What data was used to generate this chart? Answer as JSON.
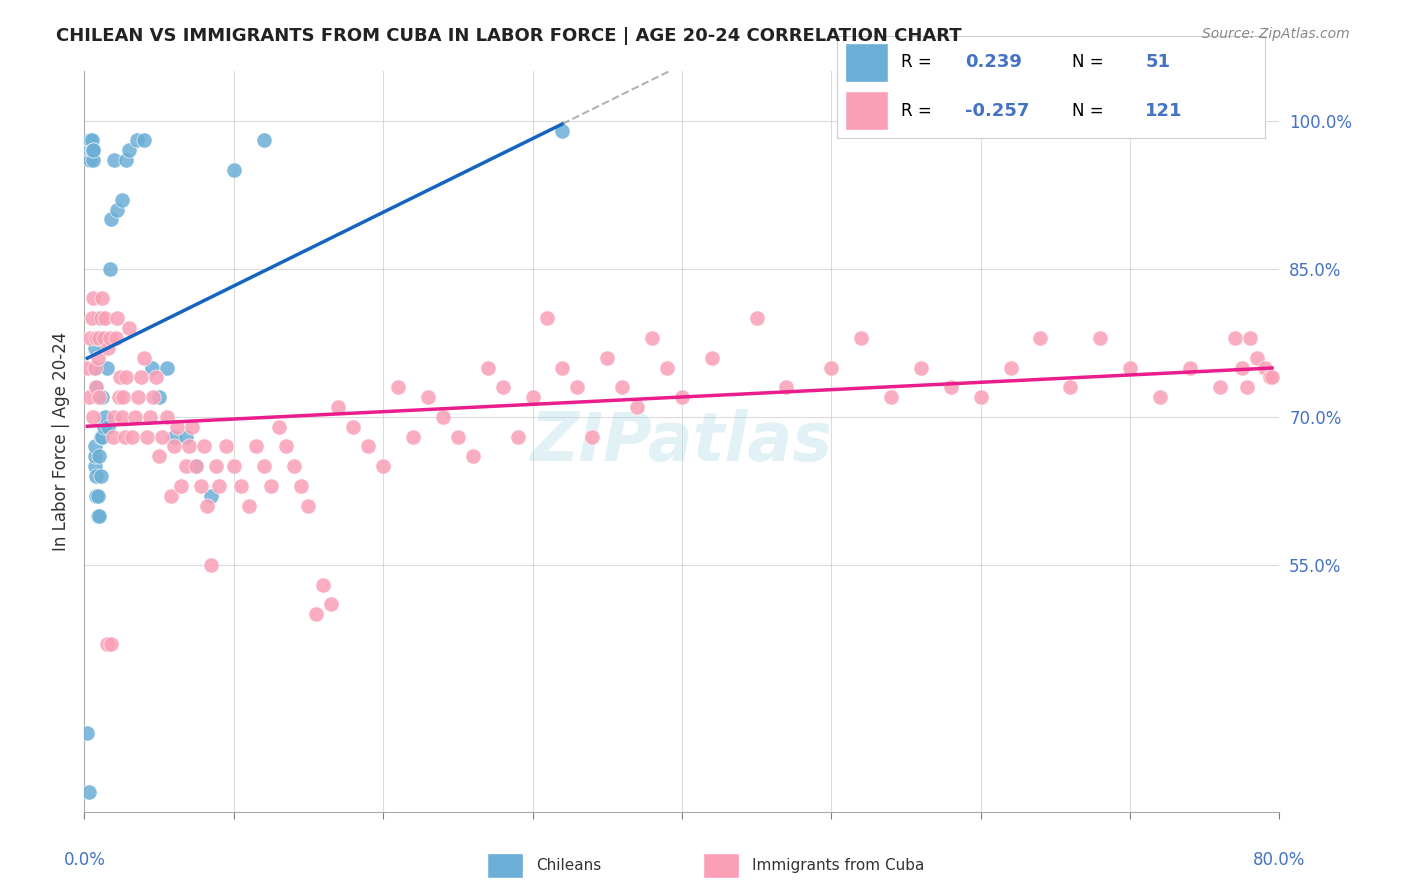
{
  "title": "CHILEAN VS IMMIGRANTS FROM CUBA IN LABOR FORCE | AGE 20-24 CORRELATION CHART",
  "source": "Source: ZipAtlas.com",
  "ylabel": "In Labor Force | Age 20-24",
  "ytick_labels": [
    "55.0%",
    "70.0%",
    "85.0%",
    "100.0%"
  ],
  "ytick_values": [
    0.55,
    0.7,
    0.85,
    1.0
  ],
  "legend_label1": "Chileans",
  "legend_label2": "Immigrants from Cuba",
  "R1": 0.239,
  "N1": 51,
  "R2": -0.257,
  "N2": 121,
  "color1": "#6baed6",
  "color2": "#fa9fb5",
  "line_color1": "#1565c0",
  "line_color2": "#e91e8c",
  "watermark": "ZIPatlas",
  "bg_color": "#ffffff",
  "chileans_x": [
    0.002,
    0.003,
    0.004,
    0.004,
    0.004,
    0.005,
    0.005,
    0.006,
    0.006,
    0.006,
    0.007,
    0.007,
    0.007,
    0.007,
    0.007,
    0.008,
    0.008,
    0.008,
    0.009,
    0.009,
    0.009,
    0.01,
    0.01,
    0.01,
    0.011,
    0.011,
    0.012,
    0.012,
    0.013,
    0.014,
    0.015,
    0.016,
    0.017,
    0.018,
    0.02,
    0.022,
    0.025,
    0.028,
    0.03,
    0.035,
    0.04,
    0.045,
    0.05,
    0.055,
    0.06,
    0.068,
    0.075,
    0.085,
    0.1,
    0.12,
    0.32
  ],
  "chileans_y": [
    0.38,
    0.32,
    0.96,
    0.97,
    0.98,
    0.97,
    0.98,
    0.97,
    0.96,
    0.97,
    0.65,
    0.66,
    0.67,
    0.75,
    0.77,
    0.62,
    0.64,
    0.73,
    0.6,
    0.62,
    0.78,
    0.6,
    0.66,
    0.8,
    0.64,
    0.68,
    0.68,
    0.72,
    0.69,
    0.7,
    0.75,
    0.69,
    0.85,
    0.9,
    0.96,
    0.91,
    0.92,
    0.96,
    0.97,
    0.98,
    0.98,
    0.75,
    0.72,
    0.75,
    0.68,
    0.68,
    0.65,
    0.62,
    0.95,
    0.98,
    0.99
  ],
  "cuba_x": [
    0.002,
    0.003,
    0.004,
    0.005,
    0.006,
    0.006,
    0.007,
    0.008,
    0.008,
    0.009,
    0.01,
    0.01,
    0.011,
    0.012,
    0.013,
    0.014,
    0.015,
    0.016,
    0.017,
    0.018,
    0.019,
    0.02,
    0.021,
    0.022,
    0.023,
    0.024,
    0.025,
    0.026,
    0.027,
    0.028,
    0.03,
    0.032,
    0.034,
    0.036,
    0.038,
    0.04,
    0.042,
    0.044,
    0.046,
    0.048,
    0.05,
    0.052,
    0.055,
    0.058,
    0.06,
    0.062,
    0.065,
    0.068,
    0.07,
    0.072,
    0.075,
    0.078,
    0.08,
    0.082,
    0.085,
    0.088,
    0.09,
    0.095,
    0.1,
    0.105,
    0.11,
    0.115,
    0.12,
    0.125,
    0.13,
    0.135,
    0.14,
    0.145,
    0.15,
    0.155,
    0.16,
    0.165,
    0.17,
    0.18,
    0.19,
    0.2,
    0.21,
    0.22,
    0.23,
    0.24,
    0.25,
    0.26,
    0.27,
    0.28,
    0.29,
    0.3,
    0.31,
    0.32,
    0.33,
    0.34,
    0.35,
    0.36,
    0.37,
    0.38,
    0.39,
    0.4,
    0.42,
    0.45,
    0.47,
    0.5,
    0.52,
    0.54,
    0.56,
    0.58,
    0.6,
    0.62,
    0.64,
    0.66,
    0.68,
    0.7,
    0.72,
    0.74,
    0.76,
    0.77,
    0.775,
    0.778,
    0.78,
    0.785,
    0.79,
    0.794,
    0.795
  ],
  "cuba_y": [
    0.75,
    0.72,
    0.78,
    0.8,
    0.82,
    0.7,
    0.75,
    0.78,
    0.73,
    0.76,
    0.78,
    0.72,
    0.8,
    0.82,
    0.78,
    0.8,
    0.47,
    0.77,
    0.78,
    0.47,
    0.68,
    0.7,
    0.78,
    0.8,
    0.72,
    0.74,
    0.7,
    0.72,
    0.68,
    0.74,
    0.79,
    0.68,
    0.7,
    0.72,
    0.74,
    0.76,
    0.68,
    0.7,
    0.72,
    0.74,
    0.66,
    0.68,
    0.7,
    0.62,
    0.67,
    0.69,
    0.63,
    0.65,
    0.67,
    0.69,
    0.65,
    0.63,
    0.67,
    0.61,
    0.55,
    0.65,
    0.63,
    0.67,
    0.65,
    0.63,
    0.61,
    0.67,
    0.65,
    0.63,
    0.69,
    0.67,
    0.65,
    0.63,
    0.61,
    0.5,
    0.53,
    0.51,
    0.71,
    0.69,
    0.67,
    0.65,
    0.73,
    0.68,
    0.72,
    0.7,
    0.68,
    0.66,
    0.75,
    0.73,
    0.68,
    0.72,
    0.8,
    0.75,
    0.73,
    0.68,
    0.76,
    0.73,
    0.71,
    0.78,
    0.75,
    0.72,
    0.76,
    0.8,
    0.73,
    0.75,
    0.78,
    0.72,
    0.75,
    0.73,
    0.72,
    0.75,
    0.78,
    0.73,
    0.78,
    0.75,
    0.72,
    0.75,
    0.73,
    0.78,
    0.75,
    0.73,
    0.78,
    0.76,
    0.75,
    0.74,
    0.74
  ],
  "xlim": [
    0.0,
    0.8
  ],
  "ylim": [
    0.3,
    1.05
  ]
}
